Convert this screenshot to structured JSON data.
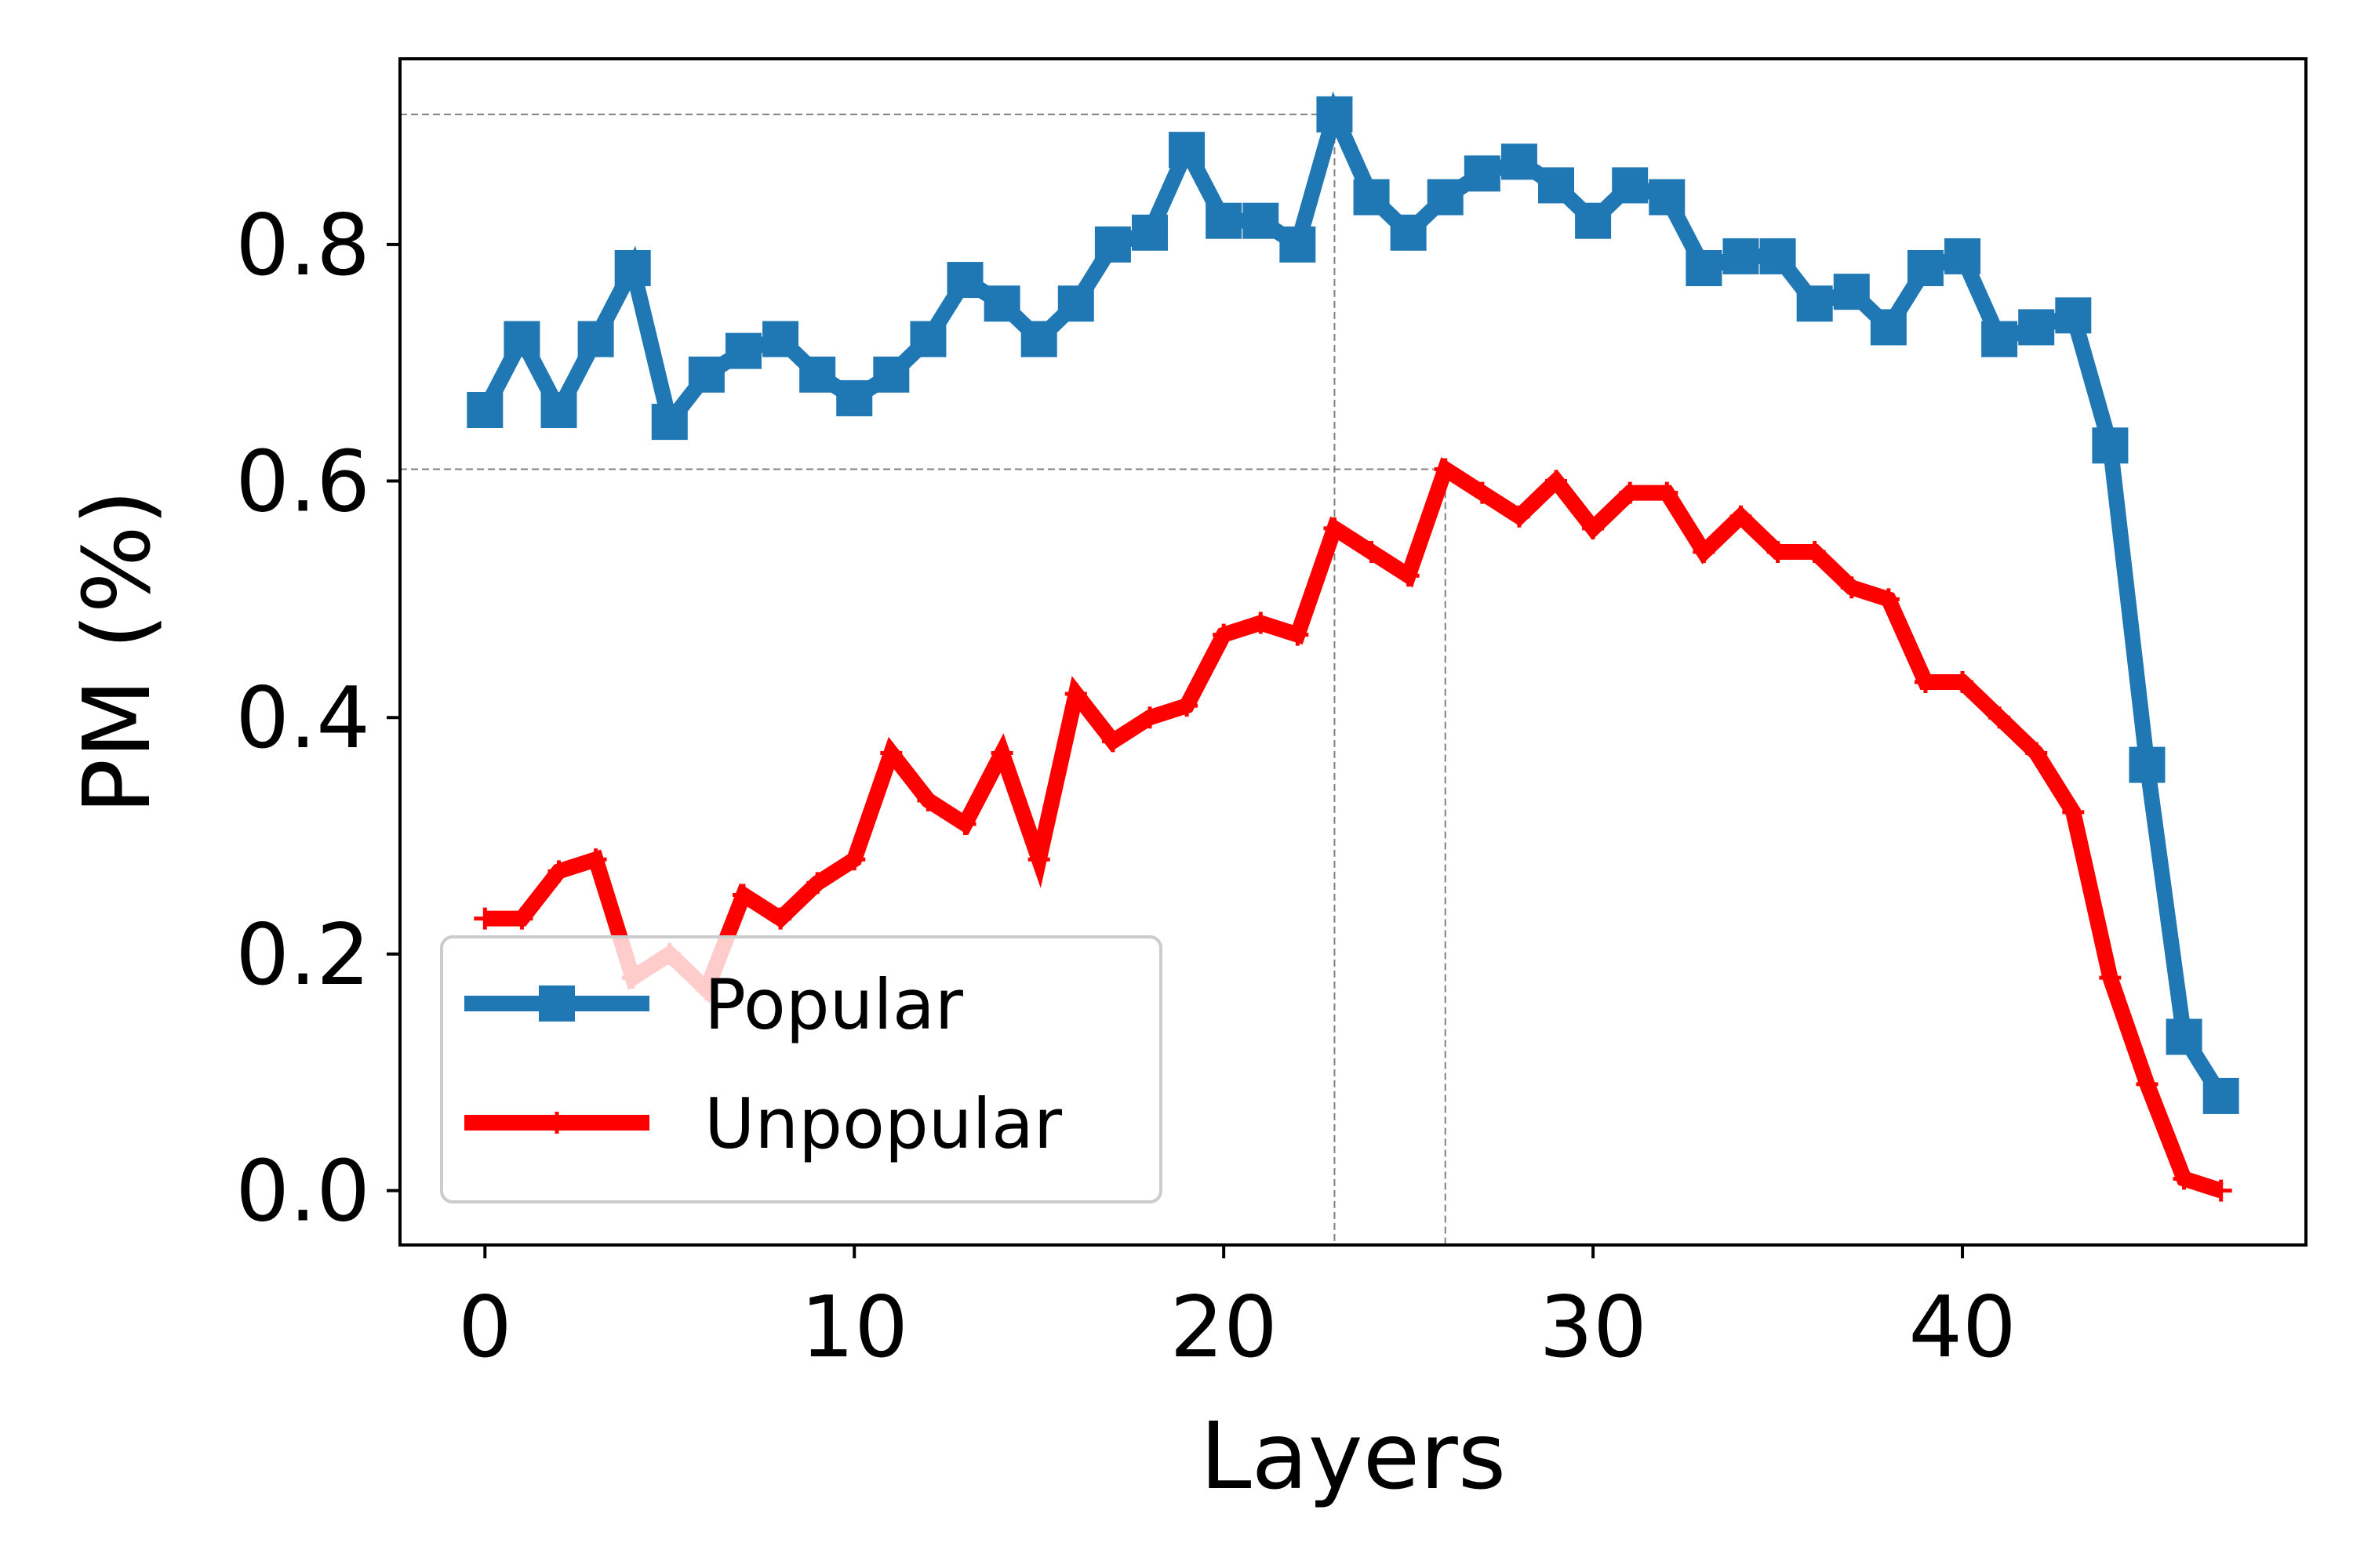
{
  "chart_data": {
    "type": "line",
    "xlabel": "Layers",
    "ylabel": "PM (%)",
    "xlim": [
      -2.3,
      49.3
    ],
    "ylim": [
      -0.046,
      0.957
    ],
    "xticks": [
      0,
      10,
      20,
      30,
      40
    ],
    "xtick_labels": [
      "0",
      "10",
      "20",
      "30",
      "40"
    ],
    "yticks": [
      0.0,
      0.2,
      0.4,
      0.6,
      0.8
    ],
    "ytick_labels": [
      "0.0",
      "0.2",
      "0.4",
      "0.6",
      "0.8"
    ],
    "grid": false,
    "legend_position": "lower-left",
    "x": [
      0,
      1,
      2,
      3,
      4,
      5,
      6,
      7,
      8,
      9,
      10,
      11,
      12,
      13,
      14,
      15,
      16,
      17,
      18,
      19,
      20,
      21,
      22,
      23,
      24,
      25,
      26,
      27,
      28,
      29,
      30,
      31,
      32,
      33,
      34,
      35,
      36,
      37,
      38,
      39,
      40,
      41,
      42,
      43,
      44,
      45,
      46,
      47
    ],
    "series": [
      {
        "name": "Popular",
        "color": "#1f77b4",
        "marker": "square",
        "values": [
          0.66,
          0.72,
          0.66,
          0.72,
          0.78,
          0.65,
          0.69,
          0.71,
          0.72,
          0.69,
          0.67,
          0.69,
          0.72,
          0.77,
          0.75,
          0.72,
          0.75,
          0.8,
          0.81,
          0.88,
          0.82,
          0.82,
          0.8,
          0.91,
          0.84,
          0.81,
          0.84,
          0.86,
          0.87,
          0.85,
          0.82,
          0.85,
          0.84,
          0.78,
          0.79,
          0.79,
          0.75,
          0.76,
          0.73,
          0.78,
          0.79,
          0.72,
          0.73,
          0.74,
          0.63,
          0.36,
          0.13,
          0.08
        ]
      },
      {
        "name": "Unpopular",
        "color": "#ff0000",
        "marker": "plus",
        "values": [
          0.23,
          0.23,
          0.27,
          0.28,
          0.18,
          0.2,
          0.17,
          0.25,
          0.23,
          0.26,
          0.28,
          0.37,
          0.33,
          0.31,
          0.37,
          0.28,
          0.42,
          0.38,
          0.4,
          0.41,
          0.47,
          0.48,
          0.47,
          0.56,
          0.54,
          0.52,
          0.61,
          0.59,
          0.57,
          0.6,
          0.56,
          0.59,
          0.59,
          0.54,
          0.57,
          0.54,
          0.54,
          0.51,
          0.5,
          0.43,
          0.43,
          0.4,
          0.37,
          0.32,
          0.18,
          0.09,
          0.01,
          0.0
        ]
      }
    ],
    "reference_lines": [
      {
        "series": "Popular",
        "x": 23,
        "y": 0.91
      },
      {
        "series": "Unpopular",
        "x": 26,
        "y": 0.61
      }
    ]
  }
}
